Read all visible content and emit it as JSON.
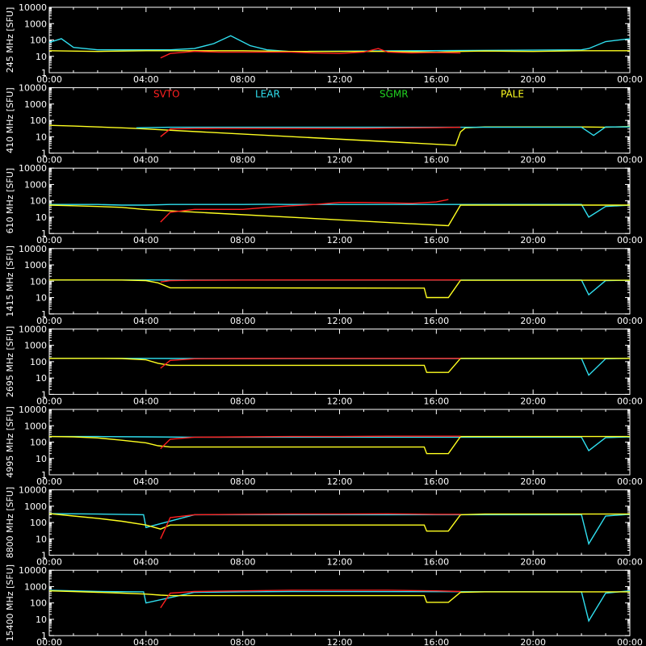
{
  "chart_data": {
    "type": "line",
    "x_tick_labels": [
      "00:00",
      "04:00",
      "08:00",
      "12:00",
      "16:00",
      "20:00",
      "00:00"
    ],
    "y_tick_labels": [
      "1",
      "10",
      "100",
      "1000",
      "10000"
    ],
    "x_domain_hours": [
      0,
      24
    ],
    "y_scale": "log",
    "y_range": [
      1,
      10000
    ],
    "legend": [
      {
        "name": "SVTO",
        "color": "#ff2020"
      },
      {
        "name": "LEAR",
        "color": "#30e0f0"
      },
      {
        "name": "SGMR",
        "color": "#20d020"
      },
      {
        "name": "PALE",
        "color": "#ffff20"
      }
    ],
    "panels": [
      {
        "ylabel": "245 MHz [SFU]",
        "series": [
          {
            "name": "LEAR",
            "x": [
              0,
              0.5,
              1,
              2,
              3,
              4,
              5,
              6,
              6.8,
              7.5,
              8.3,
              9,
              9.9,
              22,
              22.3,
              23,
              24
            ],
            "y": [
              70,
              120,
              35,
              25,
              25,
              25,
              25,
              30,
              60,
              180,
              45,
              25,
              20,
              25,
              30,
              80,
              120
            ]
          },
          {
            "name": "PALE",
            "x": [
              0,
              2,
              4,
              6,
              8,
              10,
              12,
              14,
              16,
              17,
              18,
              20,
              22,
              24
            ],
            "y": [
              22,
              20,
              22,
              22,
              22,
              20,
              20,
              20,
              18,
              20,
              21,
              20,
              22,
              22
            ]
          },
          {
            "name": "SVTO",
            "x": [
              4.6,
              5,
              6,
              7,
              8,
              9,
              10,
              11,
              12,
              13,
              13.6,
              14,
              15,
              16,
              17
            ],
            "y": [
              8,
              15,
              20,
              18,
              18,
              18,
              18,
              16,
              15,
              18,
              30,
              18,
              16,
              17,
              16
            ]
          }
        ]
      },
      {
        "ylabel": "410 MHz [SFU]",
        "series": [
          {
            "name": "PALE",
            "x": [
              0,
              1,
              2,
              3,
              3.6,
              16.8,
              17,
              17.2,
              18,
              20,
              22,
              23,
              24
            ],
            "y": [
              50,
              45,
              40,
              35,
              32,
              3,
              20,
              35,
              40,
              40,
              40,
              38,
              42
            ]
          },
          {
            "name": "LEAR",
            "x": [
              3.6,
              4,
              5,
              6,
              7,
              8,
              9,
              9.9,
              22,
              22.5,
              23,
              24
            ],
            "y": [
              35,
              36,
              38,
              38,
              38,
              38,
              38,
              38,
              38,
              12,
              40,
              40
            ]
          },
          {
            "name": "SVTO",
            "x": [
              4.6,
              5,
              6,
              7,
              8,
              9,
              10,
              11,
              12,
              13,
              14,
              15,
              16,
              17
            ],
            "y": [
              10,
              30,
              32,
              33,
              33,
              33,
              33,
              33,
              33,
              33,
              34,
              35,
              36,
              38
            ]
          }
        ]
      },
      {
        "ylabel": "610 MHz [SFU]",
        "series": [
          {
            "name": "LEAR",
            "x": [
              0,
              1,
              2,
              3,
              4,
              5,
              6,
              7,
              8,
              9,
              9.9,
              22,
              22.3,
              23,
              24
            ],
            "y": [
              60,
              60,
              60,
              55,
              55,
              60,
              60,
              60,
              60,
              62,
              60,
              60,
              10,
              45,
              55
            ]
          },
          {
            "name": "PALE",
            "x": [
              0,
              1,
              2,
              3,
              3.9,
              16.5,
              17,
              18,
              20,
              22,
              24
            ],
            "y": [
              55,
              50,
              45,
              40,
              30,
              3,
              55,
              55,
              55,
              55,
              55
            ]
          },
          {
            "name": "SVTO",
            "x": [
              4.6,
              5,
              6,
              7,
              8,
              9,
              10,
              11,
              12,
              13,
              14,
              15,
              16,
              16.5
            ],
            "y": [
              5,
              20,
              30,
              30,
              30,
              40,
              50,
              60,
              80,
              80,
              75,
              70,
              85,
              120
            ]
          }
        ]
      },
      {
        "ylabel": "1415 MHz [SFU]",
        "series": [
          {
            "name": "LEAR",
            "x": [
              0,
              2,
              4,
              6,
              8,
              10,
              22,
              22.3,
              23,
              24
            ],
            "y": [
              120,
              120,
              120,
              118,
              118,
              118,
              118,
              15,
              110,
              115
            ]
          },
          {
            "name": "PALE",
            "x": [
              0,
              2,
              3,
              4,
              4.5,
              5,
              15.5,
              15.6,
              16.5,
              17,
              18,
              20,
              22,
              24
            ],
            "y": [
              120,
              120,
              118,
              110,
              80,
              40,
              38,
              10,
              10,
              115,
              115,
              115,
              115,
              115
            ]
          },
          {
            "name": "SVTO",
            "x": [
              4.6,
              5,
              6,
              8,
              10,
              12,
              14,
              16,
              17
            ],
            "y": [
              90,
              110,
              115,
              118,
              120,
              120,
              120,
              120,
              120
            ]
          }
        ]
      },
      {
        "ylabel": "2695 MHz [SFU]",
        "series": [
          {
            "name": "LEAR",
            "x": [
              0,
              2,
              4,
              6,
              8,
              10,
              22,
              22.3,
              23,
              24
            ],
            "y": [
              160,
              160,
              160,
              155,
              155,
              155,
              155,
              15,
              150,
              160
            ]
          },
          {
            "name": "PALE",
            "x": [
              0,
              2,
              3,
              4,
              4.5,
              5,
              15.5,
              15.6,
              16.5,
              17,
              18,
              20,
              22,
              24
            ],
            "y": [
              160,
              160,
              155,
              130,
              80,
              60,
              60,
              22,
              22,
              160,
              160,
              160,
              160,
              160
            ]
          },
          {
            "name": "SVTO",
            "x": [
              4.6,
              5,
              6,
              8,
              10,
              12,
              14,
              16,
              17
            ],
            "y": [
              40,
              120,
              150,
              155,
              160,
              160,
              160,
              160,
              160
            ]
          }
        ]
      },
      {
        "ylabel": "4995 MHz [SFU]",
        "series": [
          {
            "name": "LEAR",
            "x": [
              0,
              2,
              4,
              6,
              8,
              10,
              22,
              22.3,
              23,
              24
            ],
            "y": [
              220,
              220,
              210,
              200,
              200,
              200,
              200,
              30,
              190,
              210
            ]
          },
          {
            "name": "PALE",
            "x": [
              0,
              1,
              2,
              3,
              4,
              4.5,
              5,
              15.5,
              15.6,
              16.5,
              17,
              18,
              20,
              22,
              24
            ],
            "y": [
              220,
              210,
              180,
              130,
              90,
              60,
              50,
              50,
              20,
              20,
              220,
              220,
              220,
              220,
              220
            ]
          },
          {
            "name": "SVTO",
            "x": [
              4.6,
              5,
              6,
              8,
              10,
              12,
              14,
              16,
              17
            ],
            "y": [
              40,
              150,
              200,
              210,
              220,
              220,
              230,
              230,
              230
            ]
          }
        ]
      },
      {
        "ylabel": "8800 MHz [SFU]",
        "series": [
          {
            "name": "LEAR",
            "x": [
              0,
              2,
              3.9,
              4,
              6,
              8,
              10,
              22,
              22.3,
              23,
              24
            ],
            "y": [
              350,
              330,
              300,
              50,
              300,
              300,
              300,
              300,
              5,
              250,
              320
            ]
          },
          {
            "name": "PALE",
            "x": [
              0,
              1,
              2,
              3,
              4,
              4.6,
              5,
              15.5,
              15.6,
              16.5,
              17,
              18,
              20,
              22,
              24
            ],
            "y": [
              350,
              250,
              180,
              120,
              70,
              40,
              70,
              70,
              30,
              30,
              300,
              330,
              330,
              330,
              330
            ]
          },
          {
            "name": "SVTO",
            "x": [
              4.6,
              5,
              6,
              8,
              10,
              12,
              14,
              16,
              17
            ],
            "y": [
              10,
              200,
              300,
              320,
              330,
              330,
              340,
              320,
              320
            ]
          }
        ]
      },
      {
        "ylabel": "15400 MHz [SFU]",
        "series": [
          {
            "name": "LEAR",
            "x": [
              0,
              2,
              3.9,
              4,
              6,
              8,
              10,
              22,
              22.3,
              23,
              24
            ],
            "y": [
              600,
              500,
              480,
              100,
              450,
              480,
              500,
              480,
              8,
              400,
              550
            ]
          },
          {
            "name": "PALE",
            "x": [
              0,
              1,
              2,
              3,
              4,
              4.6,
              5,
              15.5,
              15.6,
              16.5,
              17,
              18,
              20,
              22,
              24
            ],
            "y": [
              550,
              500,
              450,
              400,
              350,
              300,
              280,
              280,
              110,
              110,
              450,
              480,
              480,
              480,
              480
            ]
          },
          {
            "name": "SVTO",
            "x": [
              4.6,
              5,
              6,
              8,
              10,
              12,
              14,
              16,
              17
            ],
            "y": [
              50,
              400,
              500,
              550,
              600,
              600,
              600,
              550,
              500
            ]
          }
        ]
      }
    ]
  }
}
